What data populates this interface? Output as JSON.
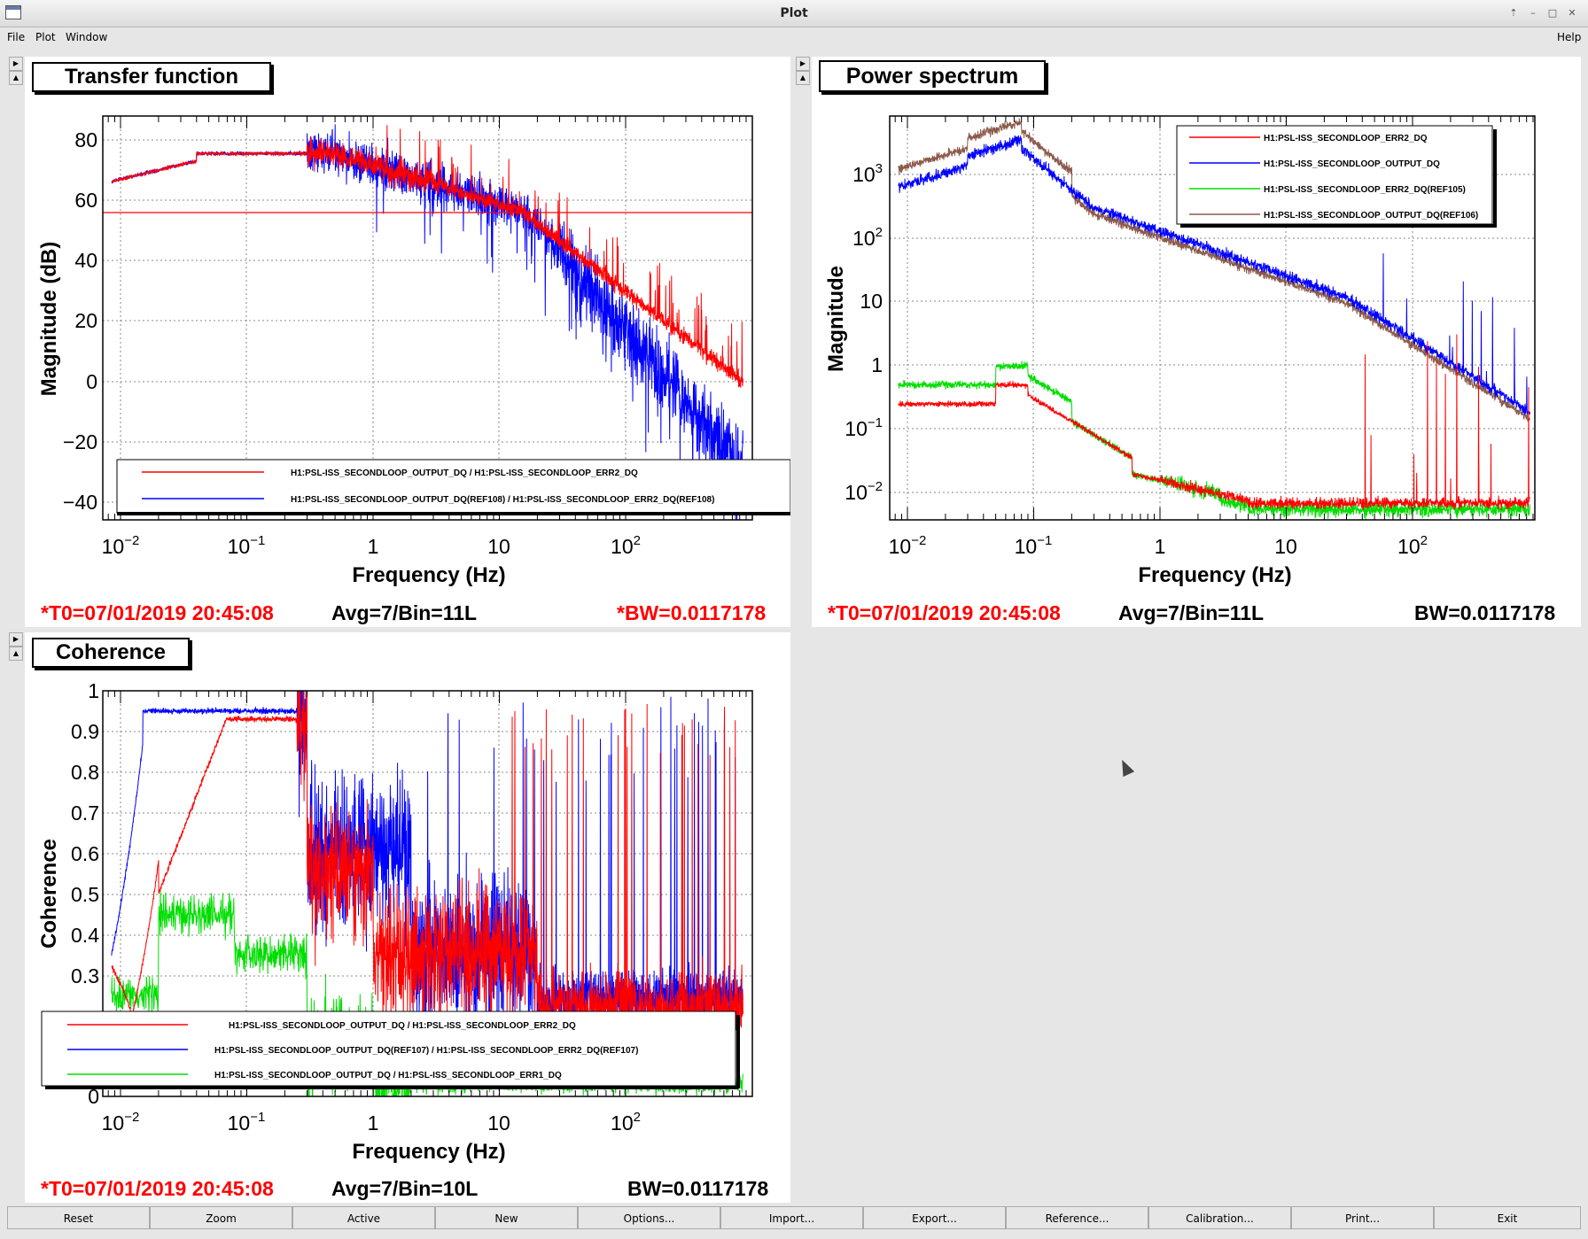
{
  "window": {
    "title": "Plot"
  },
  "menu": {
    "file": "File",
    "plot": "Plot",
    "window": "Window",
    "help": "Help"
  },
  "colors": {
    "red": "#ff0000",
    "blue": "#0000ff",
    "green": "#00dd00",
    "brown": "#8b5a4a"
  },
  "tf": {
    "title": "Transfer function",
    "ylabel": "Magnitude (dB)",
    "xlabel": "Frequency (Hz)",
    "yticks": [
      "80",
      "60",
      "40",
      "20",
      "0",
      "−20",
      "−40"
    ],
    "legend": [
      "H1:PSL-ISS_SECONDLOOP_OUTPUT_DQ / H1:PSL-ISS_SECONDLOOP_ERR2_DQ",
      "H1:PSL-ISS_SECONDLOOP_OUTPUT_DQ(REF108) / H1:PSL-ISS_SECONDLOOP_ERR2_DQ(REF108)"
    ],
    "t0": "*T0=07/01/2019 20:45:08",
    "avg": "Avg=7/Bin=11L",
    "bw": "*BW=0.0117178"
  },
  "ps": {
    "title": "Power spectrum",
    "ylabel": "Magnitude",
    "xlabel": "Frequency (Hz)",
    "yticks_plain": [
      "10",
      "1"
    ],
    "legend": [
      "H1:PSL-ISS_SECONDLOOP_ERR2_DQ",
      "H1:PSL-ISS_SECONDLOOP_OUTPUT_DQ",
      "H1:PSL-ISS_SECONDLOOP_ERR2_DQ(REF105)",
      "H1:PSL-ISS_SECONDLOOP_OUTPUT_DQ(REF106)"
    ],
    "t0": "*T0=07/01/2019 20:45:08",
    "avg": "Avg=7/Bin=11L",
    "bw": "BW=0.0117178"
  },
  "coh": {
    "title": "Coherence",
    "ylabel": "Coherence",
    "xlabel": "Frequency (Hz)",
    "yticks": [
      "1",
      "0.9",
      "0.8",
      "0.7",
      "0.6",
      "0.5",
      "0.4",
      "0.3",
      "0"
    ],
    "legend": [
      "H1:PSL-ISS_SECONDLOOP_OUTPUT_DQ / H1:PSL-ISS_SECONDLOOP_ERR2_DQ",
      "H1:PSL-ISS_SECONDLOOP_OUTPUT_DQ(REF107) / H1:PSL-ISS_SECONDLOOP_ERR2_DQ(REF107)",
      "H1:PSL-ISS_SECONDLOOP_OUTPUT_DQ / H1:PSL-ISS_SECONDLOOP_ERR1_DQ"
    ],
    "t0": "*T0=07/01/2019 20:45:08",
    "avg": "Avg=7/Bin=10L",
    "bw": "BW=0.0117178"
  },
  "xticks": {
    "one": "1",
    "ten": "10",
    "base": "10"
  },
  "buttons": [
    "Reset",
    "Zoom",
    "Active",
    "New",
    "Options...",
    "Import...",
    "Export...",
    "Reference...",
    "Calibration...",
    "Print...",
    "Exit"
  ]
}
